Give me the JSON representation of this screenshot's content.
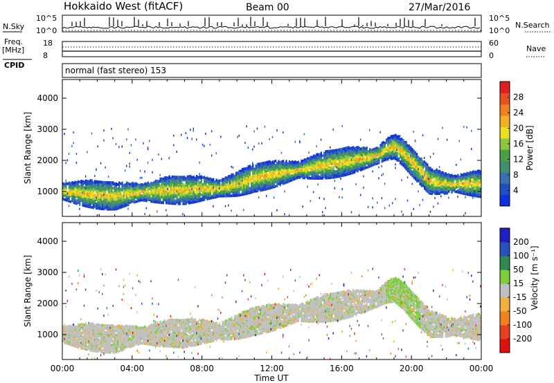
{
  "header": {
    "site": "Hokkaido West (fitACF)",
    "beam": "Beam 00",
    "date": "27/Mar/2016",
    "cpid_label": "CPID",
    "cpid_text": "normal (fast stereo) 153"
  },
  "noise_panel": {
    "left_label": "N.Sky",
    "right_label": "N.Search",
    "left_ticks": [
      "10^5",
      "10^0"
    ],
    "right_ticks": [
      "10^5",
      "10^0"
    ]
  },
  "freq_panel": {
    "left_label": "Freq.",
    "left_unit": "[MHz]",
    "right_label": "Nave",
    "left_ticks": [
      "18",
      "8"
    ],
    "right_ticks": [
      "60",
      "0"
    ]
  },
  "chart_data": [
    {
      "type": "heatmap",
      "name": "power",
      "ylabel": "Slant Range [km]",
      "xlabel": "",
      "ylim": [
        200,
        4600
      ],
      "xlim": [
        "00:00",
        "24:00"
      ],
      "yticks": [
        "1000",
        "2000",
        "3000",
        "4000"
      ],
      "colorbar": {
        "label": "Power [dB]",
        "ticks": [
          "4",
          "8",
          "12",
          "16",
          "20",
          "24",
          "28"
        ],
        "range": [
          0,
          30
        ],
        "colors": [
          "#1030e0",
          "#2050c0",
          "#3a6fb0",
          "#3f8f6a",
          "#48a048",
          "#8ec63f",
          "#e8e020",
          "#f4b020",
          "#f08020",
          "#e85020",
          "#e02020"
        ]
      },
      "echo_band": {
        "time_h": [
          0,
          1,
          2,
          3,
          4,
          5,
          6,
          7,
          8,
          9,
          10,
          11,
          12,
          13,
          14,
          15,
          16,
          17,
          18,
          18.5,
          19,
          19.5,
          20,
          20.5,
          21,
          22,
          23,
          24
        ],
        "range_km": [
          1050,
          1000,
          950,
          900,
          1000,
          1050,
          1100,
          1100,
          1150,
          1150,
          1300,
          1500,
          1600,
          1700,
          1800,
          1900,
          2000,
          2100,
          2200,
          2400,
          2500,
          2300,
          2000,
          1700,
          1400,
          1300,
          1300,
          1300
        ]
      }
    },
    {
      "type": "heatmap",
      "name": "velocity",
      "ylabel": "Slant Range [km]",
      "xlabel": "Time UT",
      "ylim": [
        200,
        4600
      ],
      "xlim": [
        "00:00",
        "24:00"
      ],
      "yticks": [
        "1000",
        "2000",
        "3000",
        "4000"
      ],
      "xticks": [
        "00:00",
        "04:00",
        "08:00",
        "12:00",
        "16:00",
        "20:00",
        "00:00"
      ],
      "colorbar": {
        "label": "Velocity [m s⁻¹]",
        "ticks": [
          "200",
          "100",
          "50",
          "15",
          "-15",
          "-50",
          "-100",
          "-200"
        ],
        "colors": [
          "#2020c0",
          "#2a50c0",
          "#2e8a50",
          "#7ccf3a",
          "#c0c0c0",
          "#f0b040",
          "#f08020",
          "#e84020",
          "#e01010"
        ]
      }
    }
  ]
}
